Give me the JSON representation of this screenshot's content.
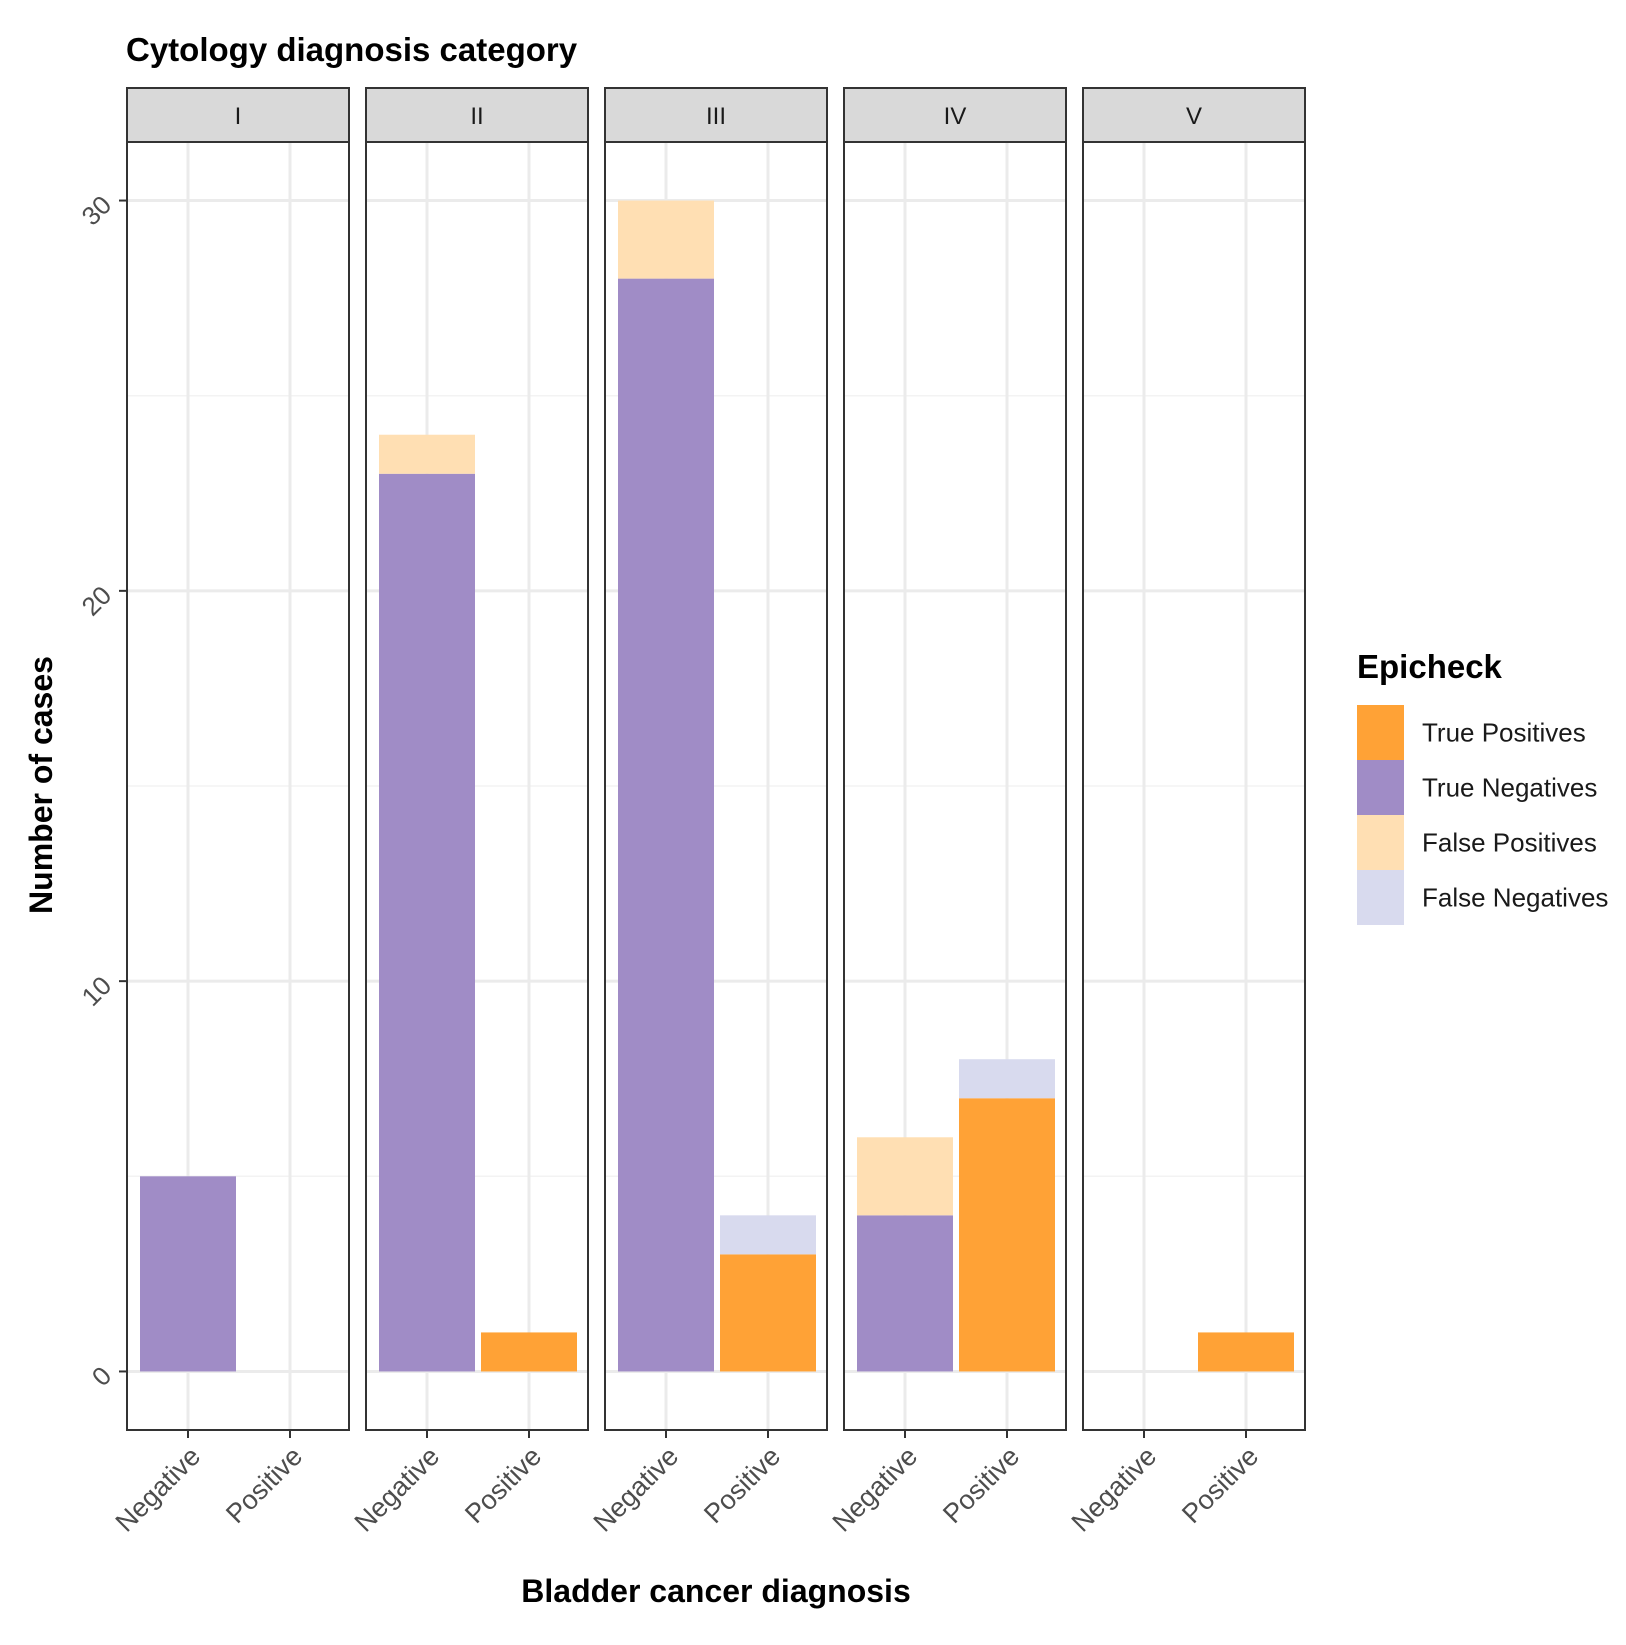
{
  "chart_data": {
    "type": "bar",
    "stacked": true,
    "facet_title": "Cytology diagnosis category",
    "facets": [
      "I",
      "II",
      "III",
      "IV",
      "V"
    ],
    "categories": [
      "Negative",
      "Positive"
    ],
    "xlabel": "Bladder cancer diagnosis",
    "ylabel": "Number of cases",
    "ylim": [
      -1.5,
      31.5
    ],
    "yticks": [
      0,
      10,
      20,
      30
    ],
    "grid": true,
    "legend": {
      "title": "Epicheck",
      "placement": "right",
      "entries": [
        {
          "name": "True Positives",
          "color": "#FFA236"
        },
        {
          "name": "True Negatives",
          "color": "#A08CC6"
        },
        {
          "name": "False Positives",
          "color": "#FFDFB3"
        },
        {
          "name": "False Negatives",
          "color": "#D8DAEE"
        }
      ]
    },
    "series": [
      {
        "name": "True Negatives",
        "color": "#A08CC6",
        "values": {
          "I": [
            5,
            0
          ],
          "II": [
            23,
            0
          ],
          "III": [
            28,
            0
          ],
          "IV": [
            4,
            0
          ],
          "V": [
            0,
            0
          ]
        }
      },
      {
        "name": "False Positives",
        "color": "#FFDFB3",
        "values": {
          "I": [
            0,
            0
          ],
          "II": [
            1,
            0
          ],
          "III": [
            2,
            0
          ],
          "IV": [
            2,
            0
          ],
          "V": [
            0,
            0
          ]
        }
      },
      {
        "name": "True Positives",
        "color": "#FFA236",
        "values": {
          "I": [
            0,
            0
          ],
          "II": [
            0,
            1
          ],
          "III": [
            0,
            3
          ],
          "IV": [
            0,
            7
          ],
          "V": [
            0,
            1
          ]
        }
      },
      {
        "name": "False Negatives",
        "color": "#D8DAEE",
        "values": {
          "I": [
            0,
            0
          ],
          "II": [
            0,
            0
          ],
          "III": [
            0,
            1
          ],
          "IV": [
            0,
            1
          ],
          "V": [
            0,
            0
          ]
        }
      }
    ]
  }
}
